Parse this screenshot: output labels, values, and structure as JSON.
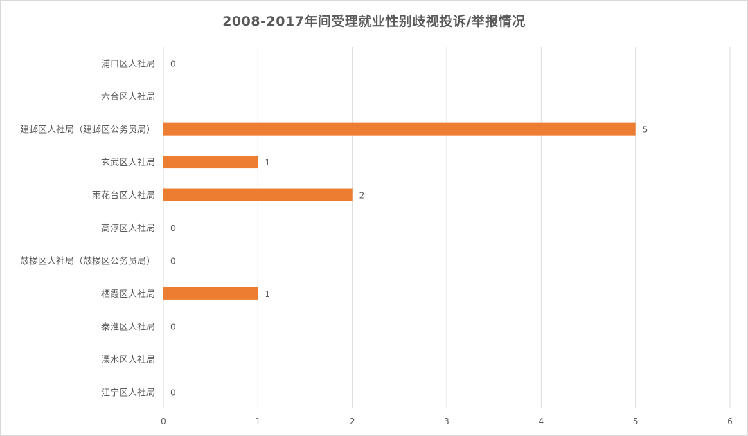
{
  "chart_data": {
    "type": "bar",
    "orientation": "horizontal",
    "title": "2008-2017年间受理就业性别歧视投诉/举报情况",
    "categories": [
      "浦口区人社局",
      "六合区人社局",
      "建邺区人社局（建邺区公务员局）",
      "玄武区人社局",
      "雨花台区人社局",
      "高淳区人社局",
      "鼓楼区人社局（鼓楼区公务员局）",
      "栖霞区人社局",
      "秦淮区人社局",
      "溧水区人社局",
      "江宁区人社局"
    ],
    "values": [
      0,
      null,
      5,
      1,
      2,
      0,
      0,
      1,
      0,
      null,
      0
    ],
    "xlim": [
      0,
      6
    ],
    "x_ticks": [
      "0",
      "1",
      "2",
      "3",
      "4",
      "5",
      "6"
    ],
    "grid": true,
    "legend": "none",
    "bar_color": "#ED7D31",
    "grid_color": "#D9D9D9"
  }
}
